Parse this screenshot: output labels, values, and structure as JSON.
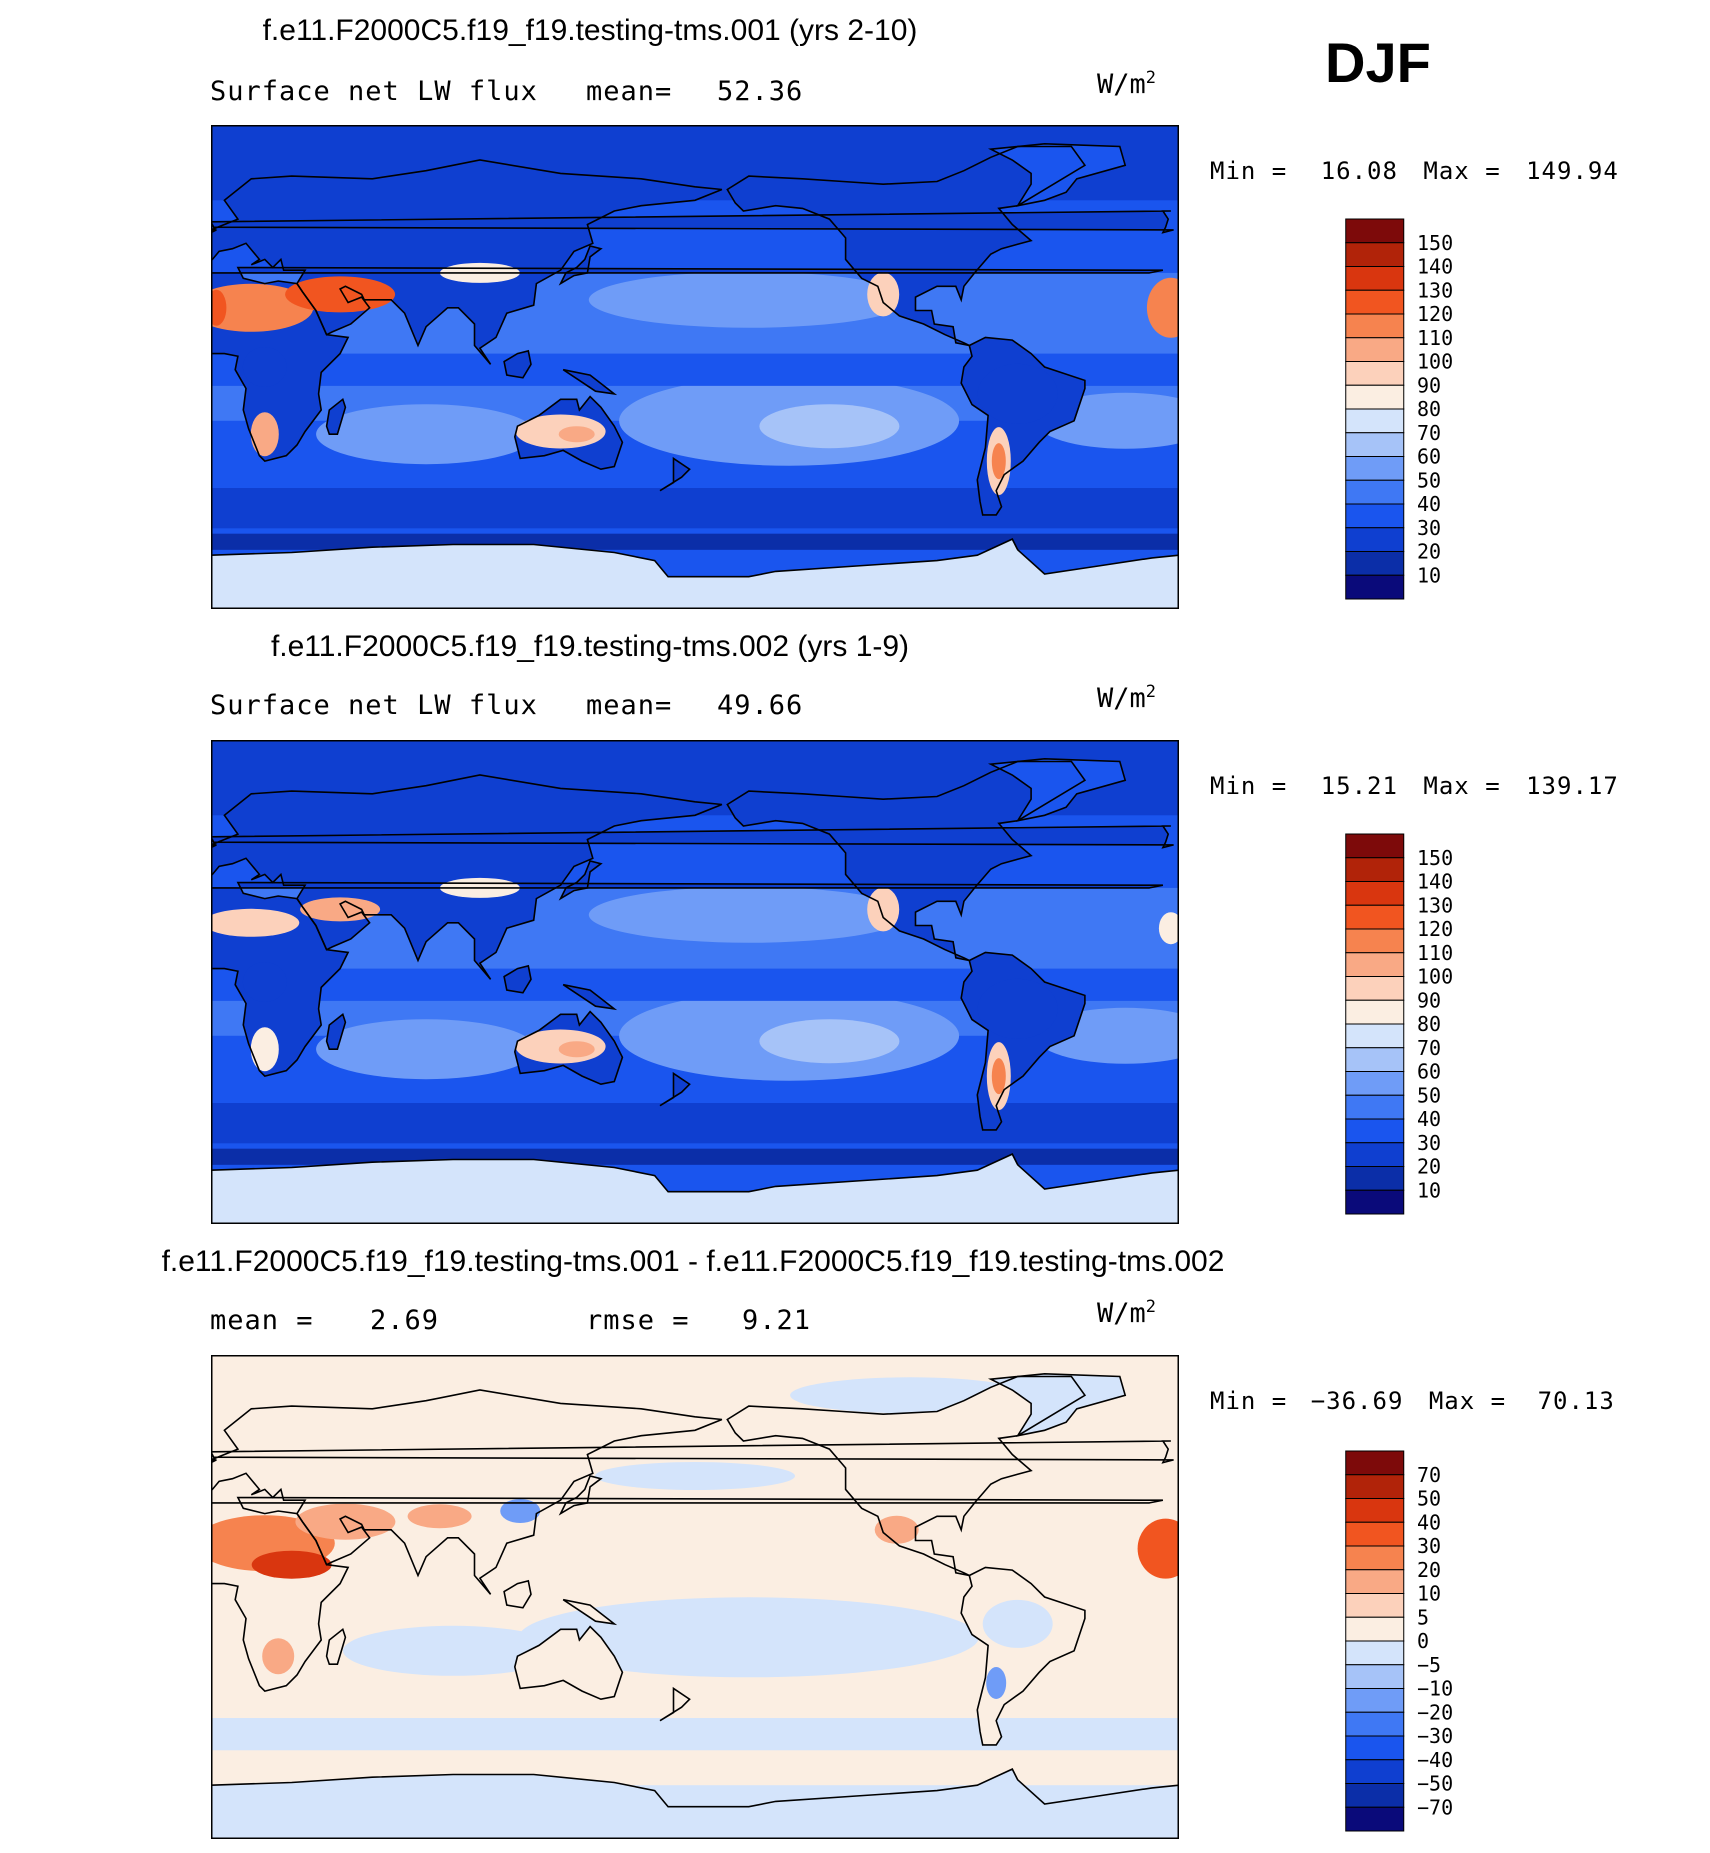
{
  "season": "DJF",
  "units": {
    "base": "W/m",
    "exp": "2"
  },
  "colors": {
    "abs_scale": [
      "#0a0a7a",
      "#0b2ea8",
      "#0f3fd0",
      "#1a55ee",
      "#3f78f4",
      "#6f9cf7",
      "#a6c3f8",
      "#d4e4fb",
      "#fbeee2",
      "#fcd1bb",
      "#f9a985",
      "#f6834f",
      "#f15520",
      "#d9360f",
      "#b12309",
      "#7d0a0a"
    ],
    "diff_scale": [
      "#0a0a7a",
      "#0b2ea8",
      "#0f3fd0",
      "#1a55ee",
      "#3f78f4",
      "#6f9cf7",
      "#a6c3f8",
      "#d4e4fb",
      "#fbeee2",
      "#fcd1bb",
      "#f9a985",
      "#f6834f",
      "#f15520",
      "#d9360f",
      "#b12309",
      "#7d0a0a"
    ],
    "land_outline": "#000000"
  },
  "panels": [
    {
      "title": "f.e11.F2000C5.f19_f19.testing-tms.001 (yrs 2-10)",
      "left_label": "Surface net LW flux",
      "stat_label": "mean=",
      "stat_value": "52.36",
      "min_label": "Min =",
      "min_value": "16.08",
      "max_label": "Max =",
      "max_value": "149.94"
    },
    {
      "title": "f.e11.F2000C5.f19_f19.testing-tms.002 (yrs 1-9)",
      "left_label": "Surface net LW flux",
      "stat_label": "mean=",
      "stat_value": "49.66",
      "min_label": "Min =",
      "min_value": "15.21",
      "max_label": "Max =",
      "max_value": "139.17"
    },
    {
      "title": "f.e11.F2000C5.f19_f19.testing-tms.001 - f.e11.F2000C5.f19_f19.testing-tms.002",
      "left_label": "mean =",
      "left_value": "2.69",
      "stat_label": "rmse =",
      "stat_value": "9.21",
      "min_label": "Min =",
      "min_value": "−36.69",
      "max_label": "Max =",
      "max_value": "70.13"
    }
  ],
  "chart_data": [
    {
      "type": "heatmap",
      "title": "f.e11.F2000C5.f19_f19.testing-tms.001 (yrs 2-10)",
      "variable": "Surface net LW flux",
      "units": "W/m2",
      "mean": 52.36,
      "min": 16.08,
      "max": 149.94,
      "colorbar_levels": [
        150,
        140,
        130,
        120,
        110,
        100,
        90,
        80,
        70,
        60,
        50,
        40,
        30,
        20,
        10
      ]
    },
    {
      "type": "heatmap",
      "title": "f.e11.F2000C5.f19_f19.testing-tms.002 (yrs 1-9)",
      "variable": "Surface net LW flux",
      "units": "W/m2",
      "mean": 49.66,
      "min": 15.21,
      "max": 139.17,
      "colorbar_levels": [
        150,
        140,
        130,
        120,
        110,
        100,
        90,
        80,
        70,
        60,
        50,
        40,
        30,
        20,
        10
      ]
    },
    {
      "type": "heatmap",
      "title": "f.e11.F2000C5.f19_f19.testing-tms.001 - f.e11.F2000C5.f19_f19.testing-tms.002",
      "units": "W/m2",
      "mean": 2.69,
      "rmse": 9.21,
      "min": -36.69,
      "max": 70.13,
      "colorbar_levels": [
        "70",
        "50",
        "40",
        "30",
        "20",
        "10",
        "5",
        "0",
        "−5",
        "−10",
        "−20",
        "−30",
        "−40",
        "−50",
        "−70"
      ]
    }
  ]
}
